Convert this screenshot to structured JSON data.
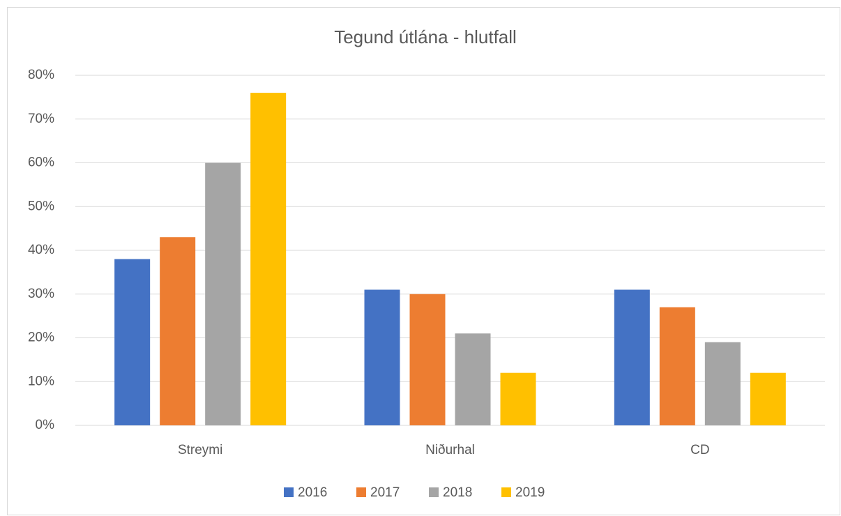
{
  "chart_data": {
    "type": "bar",
    "title": "Tegund útlána - hlutfall",
    "categories": [
      "Streymi",
      "Niðurhal",
      "CD"
    ],
    "series": [
      {
        "name": "2016",
        "color": "#4472c4",
        "values": [
          38,
          31,
          31
        ]
      },
      {
        "name": "2017",
        "color": "#ed7d31",
        "values": [
          43,
          30,
          27
        ]
      },
      {
        "name": "2018",
        "color": "#a5a5a5",
        "values": [
          60,
          21,
          19
        ]
      },
      {
        "name": "2019",
        "color": "#ffc000",
        "values": [
          76,
          12,
          12
        ]
      }
    ],
    "ylim": [
      0,
      80
    ],
    "yticks": [
      {
        "value": 0,
        "label": "0%"
      },
      {
        "value": 10,
        "label": "10%"
      },
      {
        "value": 20,
        "label": "20%"
      },
      {
        "value": 30,
        "label": "30%"
      },
      {
        "value": 40,
        "label": "40%"
      },
      {
        "value": 50,
        "label": "50%"
      },
      {
        "value": 60,
        "label": "60%"
      },
      {
        "value": 70,
        "label": "70%"
      },
      {
        "value": 80,
        "label": "80%"
      }
    ],
    "grid": true,
    "legend": "bottom"
  }
}
